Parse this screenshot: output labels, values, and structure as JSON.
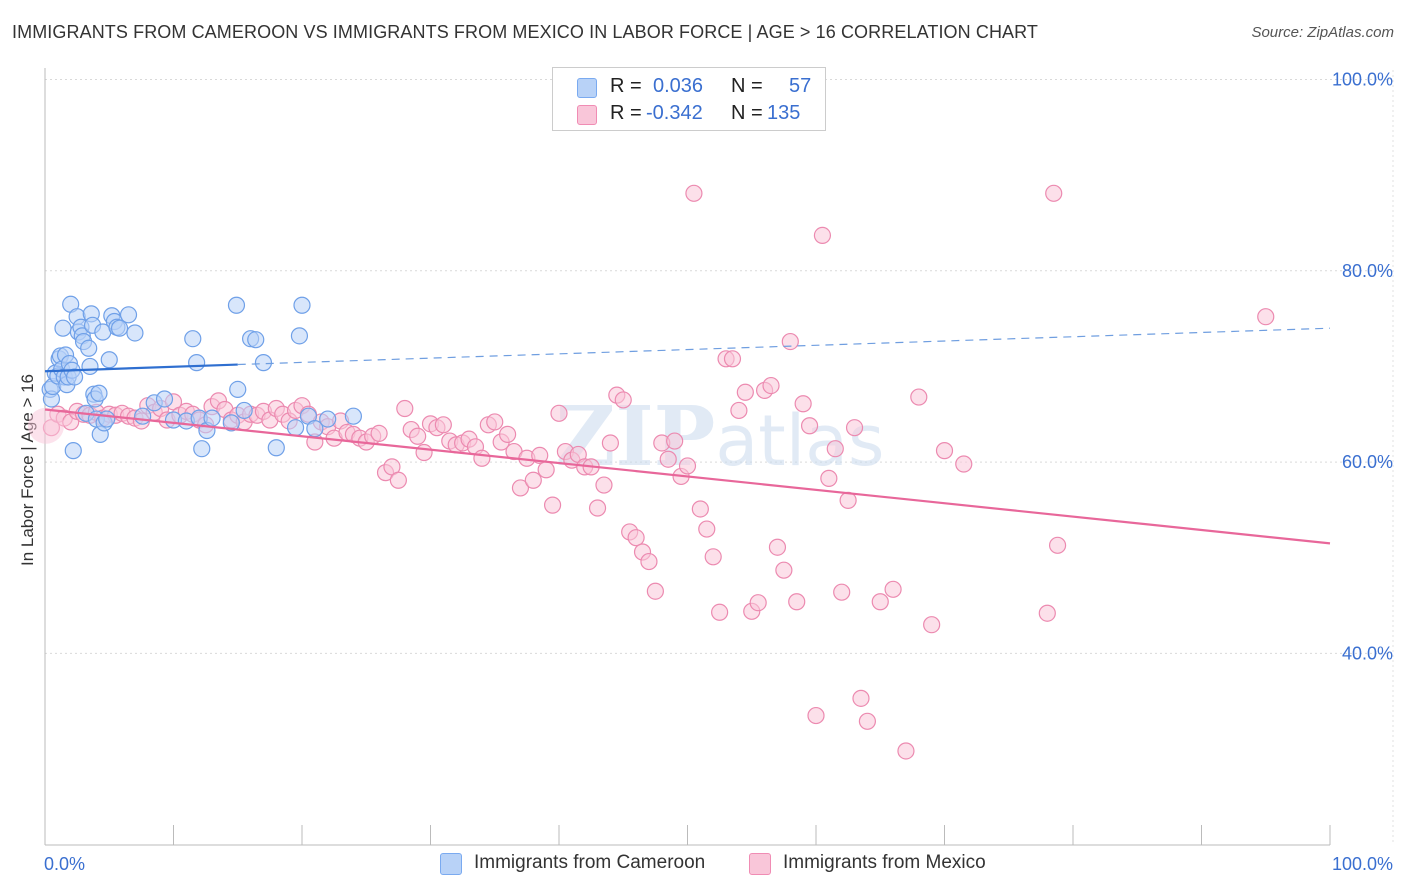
{
  "title": "IMMIGRANTS FROM CAMEROON VS IMMIGRANTS FROM MEXICO IN LABOR FORCE | AGE > 16 CORRELATION CHART",
  "source": "Source: ZipAtlas.com",
  "watermark": "ZIPatlas",
  "stats": [
    {
      "r_label": "R =",
      "r_value": "0.036",
      "n_label": "N =",
      "n_value": "57",
      "color": "#7aaaf0",
      "fill": "#b8d2f7"
    },
    {
      "r_label": "R =",
      "r_value": "-0.342",
      "n_label": "N =",
      "n_value": "135",
      "color": "#f08cb4",
      "fill": "#f9c6d9"
    }
  ],
  "legend": [
    {
      "label": "Immigrants from Cameroon",
      "color": "#7aaaf0",
      "fill": "#b8d2f7"
    },
    {
      "label": "Immigrants from Mexico",
      "color": "#f08cb4",
      "fill": "#f9c6d9"
    }
  ],
  "chart_data": {
    "type": "scatter",
    "title": "IMMIGRANTS FROM CAMEROON VS IMMIGRANTS FROM MEXICO IN LABOR FORCE | AGE > 16 CORRELATION CHART",
    "xlabel": "",
    "ylabel": "In Labor Force | Age > 16",
    "xlim": [
      0,
      100
    ],
    "ylim": [
      20,
      102
    ],
    "x_tick_labels": [
      {
        "value": 0,
        "label": "0.0%"
      },
      {
        "value": 100,
        "label": "100.0%"
      }
    ],
    "y_tick_labels": [
      {
        "value": 100,
        "label": "100.0%"
      },
      {
        "value": 80,
        "label": "80.0%"
      },
      {
        "value": 60,
        "label": "60.0%"
      },
      {
        "value": 40,
        "label": "40.0%"
      }
    ],
    "grid": true,
    "legend_position": "bottom",
    "series": [
      {
        "name": "Immigrants from Cameroon",
        "color": "#3a7bd5",
        "trend": {
          "x0": 0,
          "y0": 69.5,
          "x1": 15,
          "y1": 70.2,
          "dash_x1": 100,
          "dash_y1": 74.0
        },
        "points": [
          [
            0.4,
            67.6
          ],
          [
            0.5,
            66.6
          ],
          [
            0.6,
            67.9
          ],
          [
            0.8,
            69.3
          ],
          [
            1.0,
            69.0
          ],
          [
            1.1,
            70.8
          ],
          [
            1.2,
            71.1
          ],
          [
            1.3,
            69.7
          ],
          [
            1.4,
            74.0
          ],
          [
            1.5,
            68.9
          ],
          [
            1.6,
            71.2
          ],
          [
            1.7,
            68.1
          ],
          [
            1.8,
            68.9
          ],
          [
            1.9,
            70.3
          ],
          [
            2.0,
            76.5
          ],
          [
            2.1,
            69.6
          ],
          [
            2.2,
            61.2
          ],
          [
            2.3,
            68.9
          ],
          [
            2.5,
            75.2
          ],
          [
            2.6,
            73.6
          ],
          [
            2.8,
            74.1
          ],
          [
            2.9,
            73.2
          ],
          [
            3.0,
            72.6
          ],
          [
            3.2,
            65.1
          ],
          [
            3.4,
            71.9
          ],
          [
            3.5,
            70.0
          ],
          [
            3.6,
            75.5
          ],
          [
            3.7,
            74.3
          ],
          [
            3.8,
            67.1
          ],
          [
            3.9,
            66.6
          ],
          [
            4.0,
            64.5
          ],
          [
            4.2,
            67.2
          ],
          [
            4.3,
            62.9
          ],
          [
            4.5,
            73.6
          ],
          [
            4.6,
            64.1
          ],
          [
            4.8,
            64.5
          ],
          [
            5.0,
            70.7
          ],
          [
            5.2,
            75.3
          ],
          [
            5.4,
            74.7
          ],
          [
            5.6,
            74.1
          ],
          [
            5.8,
            74.0
          ],
          [
            6.5,
            75.4
          ],
          [
            7.0,
            73.5
          ],
          [
            7.6,
            64.8
          ],
          [
            8.5,
            66.2
          ],
          [
            9.3,
            66.6
          ],
          [
            10.0,
            64.4
          ],
          [
            11.0,
            64.3
          ],
          [
            12.0,
            64.6
          ],
          [
            12.6,
            63.3
          ],
          [
            13.0,
            64.6
          ],
          [
            14.5,
            64.1
          ],
          [
            15.0,
            67.6
          ],
          [
            15.5,
            65.4
          ],
          [
            16.0,
            72.9
          ],
          [
            17.0,
            70.4
          ],
          [
            18.0,
            61.5
          ],
          [
            19.5,
            63.6
          ],
          [
            19.8,
            73.2
          ],
          [
            20.0,
            76.4
          ],
          [
            20.5,
            64.8
          ],
          [
            21.0,
            63.5
          ],
          [
            22.0,
            64.5
          ],
          [
            24.0,
            64.8
          ],
          [
            11.5,
            72.9
          ],
          [
            11.8,
            70.4
          ],
          [
            12.2,
            61.4
          ],
          [
            14.9,
            76.4
          ],
          [
            16.4,
            72.8
          ]
        ]
      },
      {
        "name": "Immigrants from Mexico",
        "color": "#e8679a",
        "trend": {
          "x0": 0,
          "y0": 65.5,
          "x1": 100,
          "y1": 51.5
        },
        "points": [
          [
            0.5,
            63.6
          ],
          [
            1.0,
            65.0
          ],
          [
            1.5,
            64.6
          ],
          [
            2.0,
            64.2
          ],
          [
            2.5,
            65.3
          ],
          [
            3.0,
            65.0
          ],
          [
            3.5,
            64.9
          ],
          [
            4.0,
            65.2
          ],
          [
            4.5,
            64.6
          ],
          [
            5.0,
            65.0
          ],
          [
            5.5,
            64.9
          ],
          [
            6.0,
            65.1
          ],
          [
            6.5,
            64.8
          ],
          [
            7.0,
            64.6
          ],
          [
            7.5,
            64.3
          ],
          [
            8.0,
            65.9
          ],
          [
            8.5,
            65.2
          ],
          [
            9.0,
            65.6
          ],
          [
            9.5,
            64.4
          ],
          [
            10.0,
            66.3
          ],
          [
            10.5,
            64.9
          ],
          [
            11.0,
            65.3
          ],
          [
            11.5,
            65.0
          ],
          [
            12.0,
            64.4
          ],
          [
            12.5,
            63.9
          ],
          [
            13.0,
            65.8
          ],
          [
            13.5,
            66.4
          ],
          [
            14.0,
            65.5
          ],
          [
            14.5,
            64.4
          ],
          [
            15.0,
            64.9
          ],
          [
            15.5,
            64.2
          ],
          [
            16.0,
            65.0
          ],
          [
            16.5,
            64.9
          ],
          [
            17.0,
            65.3
          ],
          [
            17.5,
            64.4
          ],
          [
            18.0,
            65.6
          ],
          [
            18.5,
            65.0
          ],
          [
            19.0,
            64.3
          ],
          [
            19.5,
            65.4
          ],
          [
            20.0,
            65.9
          ],
          [
            20.5,
            65.0
          ],
          [
            21.0,
            62.1
          ],
          [
            21.5,
            64.2
          ],
          [
            22.0,
            63.7
          ],
          [
            22.5,
            62.5
          ],
          [
            23.0,
            64.3
          ],
          [
            23.5,
            63.1
          ],
          [
            24.0,
            62.9
          ],
          [
            24.5,
            62.5
          ],
          [
            25.0,
            62.1
          ],
          [
            25.5,
            62.7
          ],
          [
            26.0,
            63.0
          ],
          [
            26.5,
            58.9
          ],
          [
            27.0,
            59.5
          ],
          [
            27.5,
            58.1
          ],
          [
            28.0,
            65.6
          ],
          [
            28.5,
            63.4
          ],
          [
            29.0,
            62.7
          ],
          [
            29.5,
            61.0
          ],
          [
            30.0,
            64.0
          ],
          [
            30.5,
            63.6
          ],
          [
            31.0,
            63.9
          ],
          [
            31.5,
            62.2
          ],
          [
            32.0,
            61.8
          ],
          [
            32.5,
            62.0
          ],
          [
            33.0,
            62.4
          ],
          [
            33.5,
            61.6
          ],
          [
            34.0,
            60.4
          ],
          [
            34.5,
            63.9
          ],
          [
            35.0,
            64.2
          ],
          [
            35.5,
            62.1
          ],
          [
            36.0,
            62.9
          ],
          [
            36.5,
            61.1
          ],
          [
            37.0,
            57.3
          ],
          [
            37.5,
            60.4
          ],
          [
            38.0,
            58.1
          ],
          [
            38.5,
            60.7
          ],
          [
            39.0,
            59.2
          ],
          [
            39.5,
            55.5
          ],
          [
            40.0,
            65.1
          ],
          [
            40.5,
            61.1
          ],
          [
            41.0,
            60.2
          ],
          [
            41.5,
            60.8
          ],
          [
            42.0,
            59.5
          ],
          [
            42.5,
            59.5
          ],
          [
            43.0,
            55.2
          ],
          [
            43.5,
            57.6
          ],
          [
            44.0,
            62.0
          ],
          [
            44.5,
            67.0
          ],
          [
            45.0,
            66.5
          ],
          [
            45.5,
            52.7
          ],
          [
            46.0,
            52.1
          ],
          [
            46.5,
            50.6
          ],
          [
            47.0,
            49.6
          ],
          [
            47.5,
            46.5
          ],
          [
            48.0,
            62.0
          ],
          [
            48.5,
            60.3
          ],
          [
            49.0,
            62.2
          ],
          [
            49.5,
            58.5
          ],
          [
            50.0,
            59.6
          ],
          [
            50.5,
            88.1
          ],
          [
            51.0,
            55.1
          ],
          [
            51.5,
            53.0
          ],
          [
            52.0,
            50.1
          ],
          [
            52.5,
            44.3
          ],
          [
            53.0,
            70.8
          ],
          [
            53.5,
            70.8
          ],
          [
            54.0,
            65.4
          ],
          [
            54.5,
            67.3
          ],
          [
            55.0,
            44.4
          ],
          [
            55.5,
            45.3
          ],
          [
            56.0,
            67.5
          ],
          [
            56.5,
            68.0
          ],
          [
            57.0,
            51.1
          ],
          [
            57.5,
            48.7
          ],
          [
            58.0,
            72.6
          ],
          [
            58.5,
            45.4
          ],
          [
            59.0,
            66.1
          ],
          [
            59.5,
            63.8
          ],
          [
            60.0,
            33.5
          ],
          [
            60.5,
            83.7
          ],
          [
            61.0,
            58.3
          ],
          [
            61.5,
            61.4
          ],
          [
            62.0,
            46.4
          ],
          [
            62.5,
            56.0
          ],
          [
            63.0,
            63.6
          ],
          [
            63.5,
            35.3
          ],
          [
            64.0,
            32.9
          ],
          [
            65.0,
            45.4
          ],
          [
            66.0,
            46.7
          ],
          [
            67.0,
            29.8
          ],
          [
            68.0,
            66.8
          ],
          [
            69.0,
            43.0
          ],
          [
            70.0,
            61.2
          ],
          [
            71.5,
            59.8
          ],
          [
            78.0,
            44.2
          ],
          [
            78.5,
            88.1
          ],
          [
            78.8,
            51.3
          ],
          [
            95.0,
            75.2
          ]
        ]
      }
    ]
  }
}
